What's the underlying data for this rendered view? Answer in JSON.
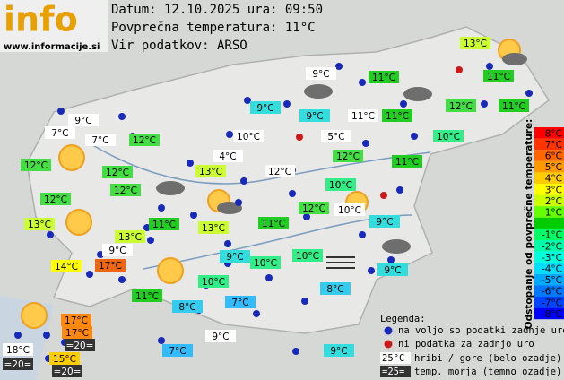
{
  "header": {
    "logo": "info",
    "site": "www.informacije.si",
    "date_line": "Datum: 12.10.2025 ura: 09:50",
    "average_line": "Povprečna temperatura: 11°C",
    "source_line": "Vir podatkov: ARSO"
  },
  "stations": [
    {
      "label": "13°C",
      "color": "#ccff33"
    },
    {
      "label": "9°C",
      "color": "#ffffff"
    },
    {
      "label": "11°C",
      "color": "#22cc22"
    },
    {
      "label": "11°C",
      "color": "#22cc22"
    },
    {
      "label": "9°C",
      "color": "#33dddd"
    },
    {
      "label": "9°C",
      "color": "#33dddd"
    },
    {
      "label": "11°C",
      "color": "#ffffff"
    },
    {
      "label": "11°C",
      "color": "#22cc22"
    },
    {
      "label": "12°C",
      "color": "#44dd44"
    },
    {
      "label": "11°C",
      "color": "#22cc22"
    },
    {
      "label": "9°C",
      "color": "#ffffff"
    },
    {
      "label": "7°C",
      "color": "#ffffff"
    },
    {
      "label": "7°C",
      "color": "#ffffff"
    },
    {
      "label": "12°C",
      "color": "#44dd44"
    },
    {
      "label": "10°C",
      "color": "#ffffff"
    },
    {
      "label": "5°C",
      "color": "#ffffff"
    },
    {
      "label": "10°C",
      "color": "#33ee88"
    },
    {
      "label": "12°C",
      "color": "#44dd44"
    },
    {
      "label": "4°C",
      "color": "#ffffff"
    },
    {
      "label": "12°C",
      "color": "#44dd44"
    },
    {
      "label": "11°C",
      "color": "#22cc22"
    },
    {
      "label": "12°C",
      "color": "#44dd44"
    },
    {
      "label": "13°C",
      "color": "#ccff33"
    },
    {
      "label": "12°C",
      "color": "#ffffff"
    },
    {
      "label": "12°C",
      "color": "#44dd44"
    },
    {
      "label": "10°C",
      "color": "#33ee88"
    },
    {
      "label": "12°C",
      "color": "#44dd44"
    },
    {
      "label": "12°C",
      "color": "#44dd44"
    },
    {
      "label": "10°C",
      "color": "#ffffff"
    },
    {
      "label": "13°C",
      "color": "#ccff33"
    },
    {
      "label": "11°C",
      "color": "#22cc22"
    },
    {
      "label": "13°C",
      "color": "#ccff33"
    },
    {
      "label": "11°C",
      "color": "#22cc22"
    },
    {
      "label": "9°C",
      "color": "#33dddd"
    },
    {
      "label": "13°C",
      "color": "#ccff33"
    },
    {
      "label": "9°C",
      "color": "#ffffff"
    },
    {
      "label": "9°C",
      "color": "#33dddd"
    },
    {
      "label": "10°C",
      "color": "#33ee88"
    },
    {
      "label": "10°C",
      "color": "#33ee88"
    },
    {
      "label": "14°C",
      "color": "#ffff00"
    },
    {
      "label": "17°C",
      "color": "#ee6611"
    },
    {
      "label": "10°C",
      "color": "#33ee88"
    },
    {
      "label": "9°C",
      "color": "#33dddd"
    },
    {
      "label": "11°C",
      "color": "#22cc22"
    },
    {
      "label": "8°C",
      "color": "#33ccee"
    },
    {
      "label": "8°C",
      "color": "#33ccee"
    },
    {
      "label": "7°C",
      "color": "#33bbff"
    },
    {
      "label": "17°C",
      "color": "#ff8811"
    },
    {
      "label": "17°C",
      "color": "#ff8811"
    },
    {
      "label": "9°C",
      "color": "#ffffff"
    },
    {
      "label": "=20=",
      "color": "#333333"
    },
    {
      "label": "18°C",
      "color": "#ffffff"
    },
    {
      "label": "7°C",
      "color": "#33bbff"
    },
    {
      "label": "9°C",
      "color": "#33dddd"
    },
    {
      "label": "15°C",
      "color": "#ffcc00"
    },
    {
      "label": "=20=",
      "color": "#333333"
    },
    {
      "label": "=20=",
      "color": "#333333"
    }
  ],
  "scale": {
    "title": "Odstopanje od povprečne temperature:",
    "steps": [
      {
        "label": "8°C",
        "color": "#ff0000"
      },
      {
        "label": "7°C",
        "color": "#ff3300"
      },
      {
        "label": "6°C",
        "color": "#ff6600"
      },
      {
        "label": "5°C",
        "color": "#ff9900"
      },
      {
        "label": "4°C",
        "color": "#ffcc00"
      },
      {
        "label": "3°C",
        "color": "#ffff00"
      },
      {
        "label": "2°C",
        "color": "#ccff00"
      },
      {
        "label": "1°C",
        "color": "#66ff00"
      },
      {
        "label": null,
        "color": "#00cc00"
      },
      {
        "label": "-1°C",
        "color": "#00ff66"
      },
      {
        "label": "-2°C",
        "color": "#00ffaa"
      },
      {
        "label": "-3°C",
        "color": "#00ffdd"
      },
      {
        "label": "-4°C",
        "color": "#00ddff"
      },
      {
        "label": "-5°C",
        "color": "#00aaff"
      },
      {
        "label": "-6°C",
        "color": "#0077ff"
      },
      {
        "label": "-7°C",
        "color": "#0044ff"
      },
      {
        "label": "-8°C",
        "color": "#0000ff"
      }
    ]
  },
  "legend": {
    "title": "Legenda:",
    "available": "na voljo so podatki zadnje ure",
    "missing": "ni podatka za zadnjo uro",
    "mountain_sample": "25°C",
    "mountain_text": "hribi / gore (belo ozadje)",
    "sea_sample": "=25=",
    "sea_text": "temp. morja (temno ozadje)"
  }
}
